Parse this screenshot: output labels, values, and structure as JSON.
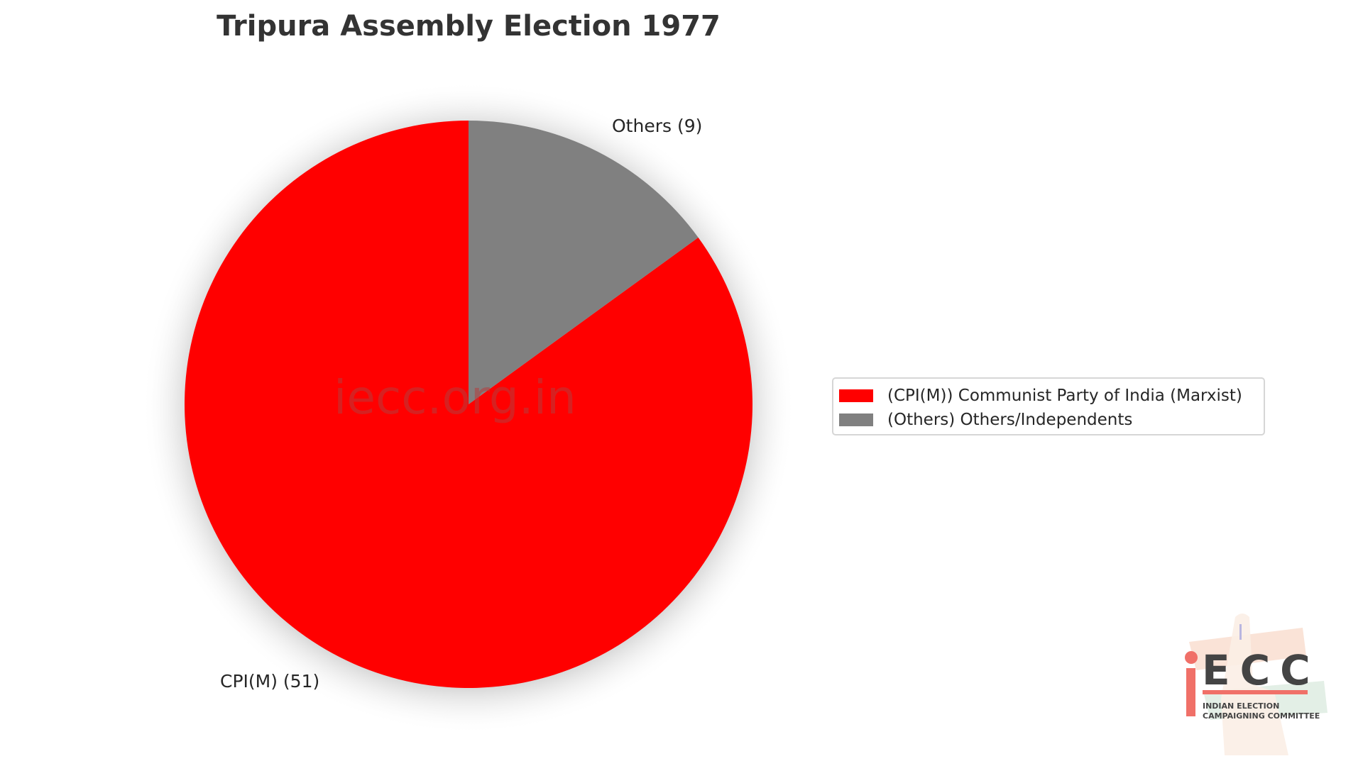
{
  "chart_data": {
    "type": "pie",
    "title": "Tripura Assembly Election 1977",
    "categories": [
      "CPI(M)",
      "Others"
    ],
    "values": [
      51,
      9
    ],
    "colors": [
      "#ff0000",
      "#808080"
    ],
    "slice_labels": [
      "CPI(M) (51)",
      "Others (9)"
    ],
    "legend": [
      {
        "label": "(CPI(M)) Communist Party of India (Marxist)",
        "color": "#ff0000"
      },
      {
        "label": "(Others) Others/Independents",
        "color": "#808080"
      }
    ],
    "legend_position": "right",
    "start_angle": 90,
    "direction": "clockwise",
    "shadow": true
  },
  "watermark": "iecc.org.in",
  "logo": {
    "letters": "ECC",
    "line1": "INDIAN ELECTION",
    "line2": "CAMPAIGNING COMMITTEE"
  }
}
